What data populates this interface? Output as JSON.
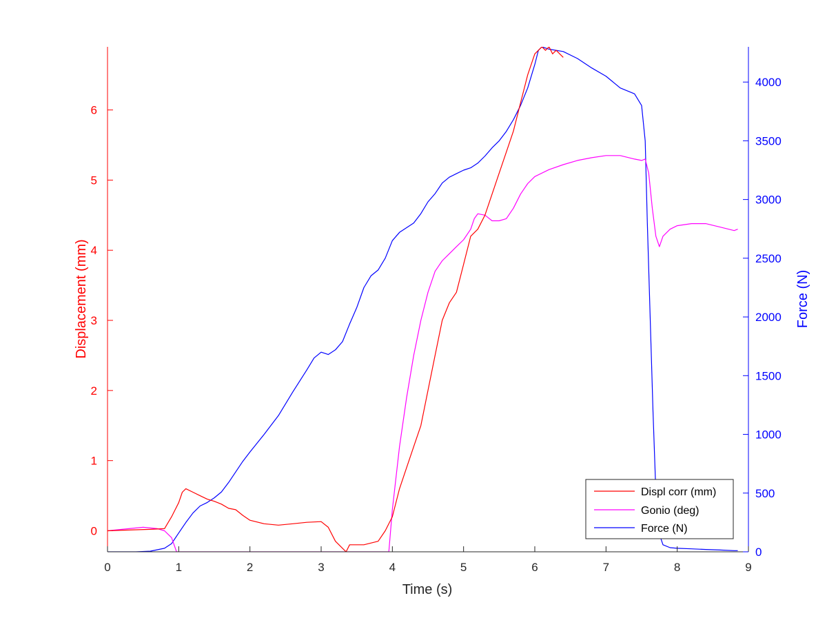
{
  "chart_data": {
    "type": "line",
    "title": "",
    "xlabel": "Time (s)",
    "ylabel_left": "Displacement (mm)",
    "ylabel_right": "Force (N)",
    "xlim": [
      0,
      9
    ],
    "ylim_left": [
      -0.3,
      6.9
    ],
    "ylim_right": [
      0,
      4300
    ],
    "xticks": [
      "0",
      "1",
      "2",
      "3",
      "4",
      "5",
      "6",
      "7",
      "8",
      "9"
    ],
    "yticks_left": [
      "0",
      "1",
      "2",
      "3",
      "4",
      "5",
      "6"
    ],
    "yticks_right": [
      "0",
      "500",
      "1000",
      "1500",
      "2000",
      "2500",
      "3000",
      "3500",
      "4000"
    ],
    "colors": {
      "displ": "#ff0000",
      "gonio": "#ff00ff",
      "force": "#0000ff",
      "axis_dark": "#262626"
    },
    "legend": {
      "placement": "bottom-right",
      "entries": [
        {
          "label": "Displ corr (mm)",
          "color": "#ff0000"
        },
        {
          "label": "Gonio (deg)",
          "color": "#ff00ff"
        },
        {
          "label": "Force (N)",
          "color": "#0000ff"
        }
      ]
    },
    "series": [
      {
        "name": "Displ corr (mm)",
        "axis": "left",
        "x": [
          0,
          0.3,
          0.6,
          0.8,
          0.9,
          1.0,
          1.05,
          1.1,
          1.2,
          1.3,
          1.4,
          1.5,
          1.6,
          1.7,
          1.8,
          1.9,
          2.0,
          2.2,
          2.4,
          2.6,
          2.8,
          3.0,
          3.1,
          3.2,
          3.3,
          3.35,
          3.4,
          3.6,
          3.8,
          3.9,
          4.0,
          4.1,
          4.2,
          4.3,
          4.4,
          4.5,
          4.6,
          4.7,
          4.8,
          4.9,
          5.0,
          5.1,
          5.2,
          5.3,
          5.4,
          5.5,
          5.6,
          5.7,
          5.8,
          5.9,
          6.0,
          6.1,
          6.15,
          6.2,
          6.25,
          6.3,
          6.4
        ],
        "values": [
          0.0,
          0.01,
          0.02,
          0.03,
          0.2,
          0.4,
          0.55,
          0.6,
          0.55,
          0.5,
          0.45,
          0.42,
          0.38,
          0.32,
          0.3,
          0.22,
          0.15,
          0.1,
          0.08,
          0.1,
          0.12,
          0.13,
          0.05,
          -0.15,
          -0.25,
          -0.3,
          -0.2,
          -0.2,
          -0.15,
          0.0,
          0.2,
          0.6,
          0.9,
          1.2,
          1.5,
          2.0,
          2.5,
          3.0,
          3.25,
          3.4,
          3.8,
          4.2,
          4.3,
          4.5,
          4.8,
          5.1,
          5.4,
          5.7,
          6.1,
          6.5,
          6.8,
          6.9,
          6.85,
          6.9,
          6.8,
          6.85,
          6.75
        ]
      },
      {
        "name": "Gonio (deg)",
        "axis": "left",
        "x": [
          0,
          0.3,
          0.5,
          0.7,
          0.8,
          0.9,
          0.97,
          3.95,
          4.0,
          4.1,
          4.2,
          4.3,
          4.4,
          4.5,
          4.6,
          4.7,
          4.8,
          4.9,
          5.0,
          5.1,
          5.15,
          5.2,
          5.3,
          5.4,
          5.5,
          5.6,
          5.7,
          5.8,
          5.9,
          6.0,
          6.2,
          6.4,
          6.6,
          6.8,
          7.0,
          7.2,
          7.4,
          7.5,
          7.55,
          7.6,
          7.65,
          7.7,
          7.75,
          7.8,
          7.9,
          8.0,
          8.2,
          8.4,
          8.6,
          8.8,
          8.85
        ],
        "values": [
          0.0,
          0.03,
          0.05,
          0.03,
          0.0,
          -0.1,
          -0.3,
          -0.3,
          0.3,
          1.2,
          1.9,
          2.5,
          3.0,
          3.4,
          3.7,
          3.85,
          3.95,
          4.05,
          4.15,
          4.3,
          4.45,
          4.52,
          4.5,
          4.42,
          4.42,
          4.45,
          4.6,
          4.8,
          4.95,
          5.05,
          5.15,
          5.22,
          5.28,
          5.32,
          5.35,
          5.35,
          5.3,
          5.28,
          5.3,
          5.1,
          4.6,
          4.2,
          4.05,
          4.2,
          4.3,
          4.35,
          4.38,
          4.38,
          4.33,
          4.28,
          4.3
        ]
      },
      {
        "name": "Force (N)",
        "axis": "right",
        "x": [
          0,
          0.4,
          0.6,
          0.8,
          0.9,
          1.0,
          1.1,
          1.2,
          1.3,
          1.4,
          1.5,
          1.6,
          1.7,
          1.8,
          1.9,
          2.0,
          2.2,
          2.4,
          2.6,
          2.8,
          2.9,
          3.0,
          3.1,
          3.2,
          3.3,
          3.4,
          3.5,
          3.6,
          3.7,
          3.8,
          3.9,
          4.0,
          4.1,
          4.2,
          4.3,
          4.4,
          4.5,
          4.6,
          4.7,
          4.8,
          4.9,
          5.0,
          5.1,
          5.2,
          5.3,
          5.4,
          5.5,
          5.6,
          5.7,
          5.8,
          5.9,
          6.0,
          6.05,
          6.1,
          6.2,
          6.4,
          6.6,
          6.8,
          7.0,
          7.2,
          7.4,
          7.5,
          7.55,
          7.58,
          7.62,
          7.66,
          7.7,
          7.75,
          7.8,
          7.9,
          8.0,
          8.2,
          8.4,
          8.6,
          8.8,
          8.85
        ],
        "values": [
          0,
          0,
          5,
          30,
          70,
          160,
          250,
          330,
          390,
          420,
          460,
          510,
          590,
          680,
          770,
          850,
          1000,
          1160,
          1360,
          1550,
          1650,
          1700,
          1680,
          1720,
          1790,
          1940,
          2080,
          2250,
          2350,
          2400,
          2500,
          2650,
          2720,
          2760,
          2800,
          2880,
          2980,
          3050,
          3140,
          3190,
          3220,
          3250,
          3270,
          3310,
          3370,
          3440,
          3500,
          3580,
          3680,
          3800,
          3950,
          4150,
          4270,
          4300,
          4280,
          4260,
          4200,
          4120,
          4050,
          3950,
          3900,
          3800,
          3500,
          2800,
          2000,
          1200,
          500,
          150,
          60,
          35,
          30,
          25,
          20,
          15,
          10,
          10
        ]
      }
    ]
  }
}
